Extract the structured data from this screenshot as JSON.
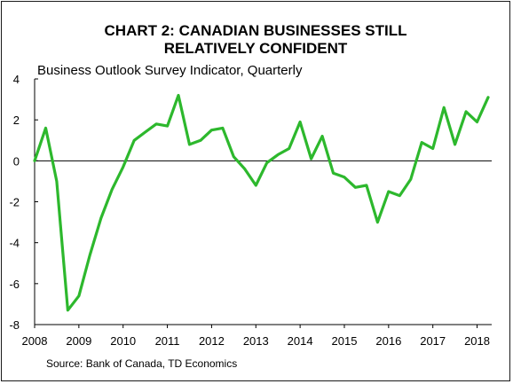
{
  "chart_data": {
    "type": "line",
    "title_lines": [
      "CHART 2: CANADIAN BUSINESSES STILL",
      "RELATIVELY CONFIDENT"
    ],
    "subtitle": "Business Outlook Survey Indicator, Quarterly",
    "source": "Source: Bank of Canada, TD Economics",
    "x_tick_labels": [
      "2008",
      "2009",
      "2010",
      "2011",
      "2012",
      "2013",
      "2014",
      "2015",
      "2016",
      "2017",
      "2018"
    ],
    "y_tick_labels": [
      "4",
      "2",
      "0",
      "-2",
      "-4",
      "-6",
      "-8"
    ],
    "ylim": [
      -8,
      4
    ],
    "xlim": [
      2008.0,
      2018.33
    ],
    "grid": false,
    "zero_line": true,
    "series": [
      {
        "color": "#2db82d",
        "x": [
          2008.0,
          2008.25,
          2008.5,
          2008.75,
          2009.0,
          2009.25,
          2009.5,
          2009.75,
          2010.0,
          2010.25,
          2010.5,
          2010.75,
          2011.0,
          2011.25,
          2011.5,
          2011.75,
          2012.0,
          2012.25,
          2012.5,
          2012.75,
          2013.0,
          2013.25,
          2013.5,
          2013.75,
          2014.0,
          2014.25,
          2014.5,
          2014.75,
          2015.0,
          2015.25,
          2015.5,
          2015.75,
          2016.0,
          2016.25,
          2016.5,
          2016.75,
          2017.0,
          2017.25,
          2017.5,
          2017.75,
          2018.0,
          2018.25
        ],
        "values": [
          0.0,
          1.6,
          -1.0,
          -7.3,
          -6.6,
          -4.6,
          -2.8,
          -1.4,
          -0.3,
          1.0,
          1.4,
          1.8,
          1.7,
          3.2,
          0.8,
          1.0,
          1.5,
          1.6,
          0.2,
          -0.4,
          -1.2,
          -0.1,
          0.3,
          0.6,
          1.9,
          0.1,
          1.2,
          -0.6,
          -0.8,
          -1.3,
          -1.2,
          -3.0,
          -1.5,
          -1.7,
          -0.9,
          0.9,
          0.6,
          2.6,
          0.8,
          2.4,
          1.9,
          3.1
        ]
      }
    ]
  }
}
